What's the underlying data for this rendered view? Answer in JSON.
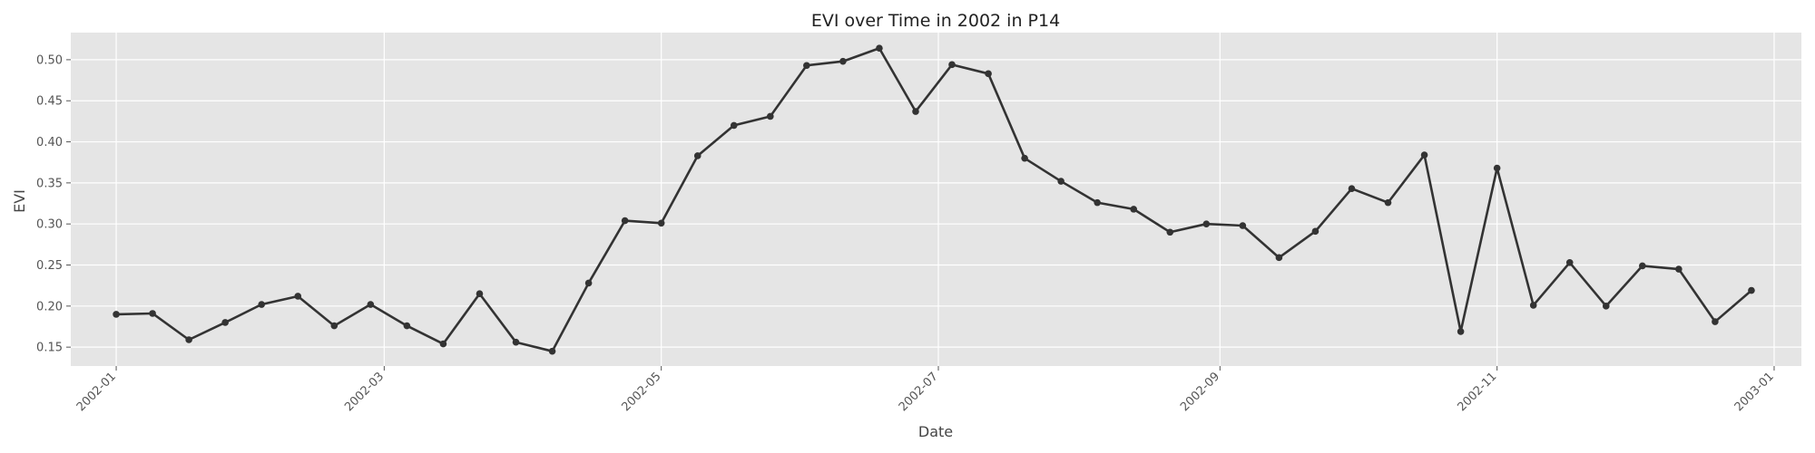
{
  "chart_data": {
    "type": "line",
    "title": "EVI over Time in 2002 in P14",
    "xlabel": "Date",
    "ylabel": "EVI",
    "xlim": [
      "2001-12-22",
      "2003-01-07"
    ],
    "ylim": [
      0.127,
      0.533
    ],
    "x_ticks": [
      "2002-01",
      "2002-03",
      "2002-05",
      "2002-07",
      "2002-09",
      "2002-11",
      "2003-01"
    ],
    "y_ticks": [
      "0.15",
      "0.20",
      "0.25",
      "0.30",
      "0.35",
      "0.40",
      "0.45",
      "0.50"
    ],
    "grid": true,
    "line_color": "#333333",
    "background_color": "#e5e5e5",
    "series": [
      {
        "x": [
          "2002-01-01",
          "2002-01-09",
          "2002-01-17",
          "2002-01-25",
          "2002-02-02",
          "2002-02-10",
          "2002-02-18",
          "2002-02-26",
          "2002-03-06",
          "2002-03-14",
          "2002-03-22",
          "2002-03-30",
          "2002-04-07",
          "2002-04-15",
          "2002-04-23",
          "2002-05-01",
          "2002-05-09",
          "2002-05-17",
          "2002-05-25",
          "2002-06-02",
          "2002-06-10",
          "2002-06-18",
          "2002-06-26",
          "2002-07-04",
          "2002-07-12",
          "2002-07-20",
          "2002-07-28",
          "2002-08-05",
          "2002-08-13",
          "2002-08-21",
          "2002-08-29",
          "2002-09-06",
          "2002-09-14",
          "2002-09-22",
          "2002-09-30",
          "2002-10-08",
          "2002-10-16",
          "2002-10-24",
          "2002-11-01",
          "2002-11-09",
          "2002-11-17",
          "2002-11-25",
          "2002-12-03",
          "2002-12-11",
          "2002-12-19",
          "2002-12-27"
        ],
        "y": [
          0.19,
          0.191,
          0.159,
          0.18,
          0.202,
          0.212,
          0.176,
          0.202,
          0.176,
          0.154,
          0.215,
          0.156,
          0.145,
          0.228,
          0.304,
          0.301,
          0.383,
          0.42,
          0.431,
          0.493,
          0.498,
          0.514,
          0.437,
          0.494,
          0.483,
          0.38,
          0.352,
          0.326,
          0.318,
          0.29,
          0.3,
          0.298,
          0.259,
          0.291,
          0.343,
          0.326,
          0.384,
          0.169,
          0.368,
          0.201,
          0.253,
          0.2,
          0.249,
          0.245,
          0.181,
          0.219
        ]
      }
    ]
  }
}
